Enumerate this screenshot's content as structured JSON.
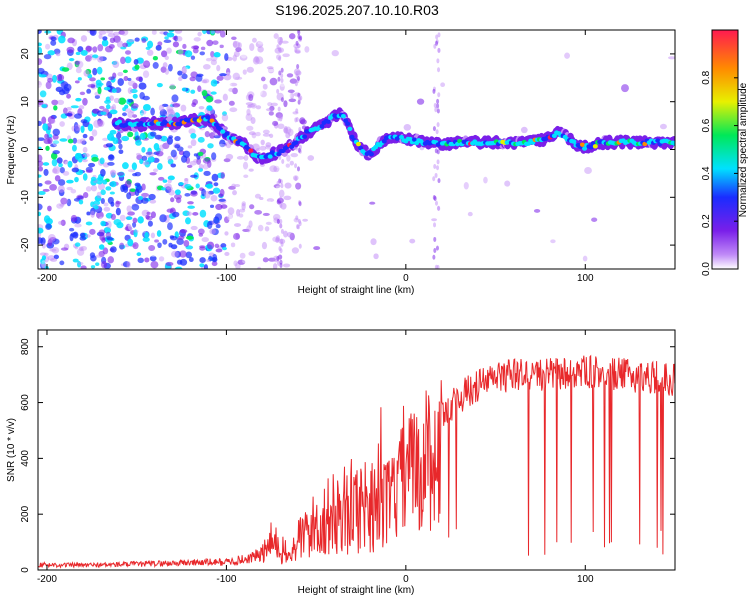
{
  "title": "S196.2025.207.10.10.R03",
  "colors": {
    "snr_line": "#e8282b",
    "spectral_points": "#6a1ee0",
    "colorbar": [
      "#ffffff",
      "#c08af7",
      "#7a1fe9",
      "#1a2cff",
      "#00e1ff",
      "#00e858",
      "#e8f000",
      "#ff8a00",
      "#ff1a50"
    ]
  },
  "chart_data": [
    {
      "type": "heatmap",
      "name": "spectrogram",
      "xlabel": "Height of straight line (km)",
      "ylabel": "Frequency (Hz)",
      "xlim": [
        -205,
        150
      ],
      "ylim": [
        -25,
        25
      ],
      "xticks": [
        -200,
        -100,
        0,
        100
      ],
      "yticks": [
        -20,
        -10,
        0,
        10,
        20
      ],
      "colorbar_label": "Normalized spectral amplitude",
      "colorbar_range": [
        0.0,
        1.0
      ],
      "colorbar_ticks": [
        0.0,
        0.2,
        0.4,
        0.6,
        0.8
      ],
      "ridge_track": {
        "x": [
          -160,
          -150,
          -140,
          -130,
          -120,
          -110,
          -105,
          -100,
          -95,
          -90,
          -85,
          -80,
          -75,
          -70,
          -65,
          -60,
          -55,
          -50,
          -45,
          -40,
          -35,
          -30,
          -25,
          -20,
          -15,
          -10,
          -5,
          0,
          10,
          20,
          30,
          40,
          50,
          60,
          70,
          80,
          85,
          90,
          95,
          100,
          110,
          120,
          130,
          140,
          150
        ],
        "y": [
          5.5,
          5,
          5.5,
          5.5,
          6,
          6.5,
          5,
          3,
          2,
          1,
          -1,
          -2,
          -1,
          -0.5,
          0.5,
          2,
          3.5,
          4.5,
          5.5,
          7,
          7.5,
          3,
          0,
          -1,
          1,
          2.5,
          2.5,
          2,
          1.5,
          1,
          1.5,
          1.5,
          1.5,
          1.5,
          1.5,
          2.5,
          3.5,
          2.5,
          1,
          0.5,
          1.5,
          1.5,
          1.5,
          1.5,
          1.5
        ]
      }
    },
    {
      "type": "line",
      "name": "snr",
      "xlabel": "Height of straight line (km)",
      "ylabel": "SNR (10 * v/v)",
      "xlim": [
        -205,
        150
      ],
      "ylim": [
        0,
        860
      ],
      "xticks": [
        -200,
        -100,
        0,
        100
      ],
      "yticks": [
        0,
        200,
        400,
        600,
        800
      ],
      "envelope": {
        "x": [
          -205,
          -180,
          -150,
          -120,
          -100,
          -90,
          -80,
          -75,
          -70,
          -65,
          -60,
          -50,
          -40,
          -30,
          -20,
          -10,
          0,
          10,
          20,
          30,
          40,
          50,
          60,
          80,
          100,
          120,
          140,
          150
        ],
        "y": [
          20,
          18,
          22,
          28,
          30,
          40,
          60,
          110,
          90,
          50,
          120,
          180,
          220,
          250,
          270,
          320,
          440,
          520,
          560,
          620,
          660,
          690,
          700,
          700,
          710,
          700,
          690,
          680
        ]
      }
    }
  ]
}
